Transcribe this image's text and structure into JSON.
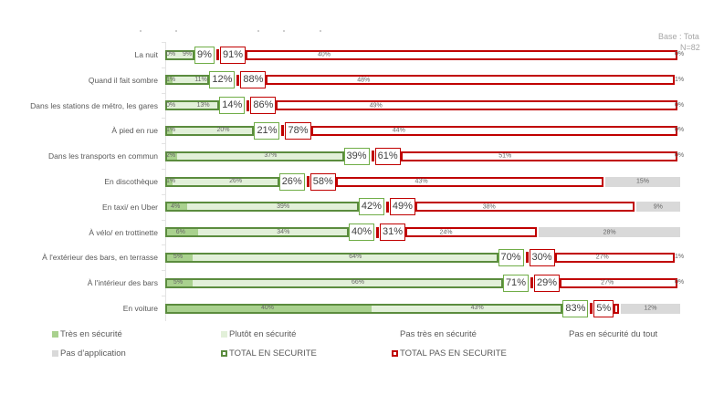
{
  "note": {
    "base": "Base : Tota",
    "n": "N=82"
  },
  "colors": {
    "tres": "#a9d18e",
    "plutot": "#e2f0d9",
    "green_border": "#5b8c3e",
    "total_green": "#70ad47",
    "red": "#c00000",
    "gray": "#d9d9d9"
  },
  "legend": [
    {
      "label": "Très en sécurité",
      "swatch": "dark-green-fill"
    },
    {
      "label": "Plutôt en sécurité",
      "swatch": "light-green-fill"
    },
    {
      "label": "Pas très en sécurité",
      "swatch": "none"
    },
    {
      "label": "Pas en sécurité du tout",
      "swatch": "none"
    },
    {
      "label": "Pas d’application",
      "swatch": "gray-fill"
    },
    {
      "label": "TOTAL EN SECURITE",
      "swatch": "green-outline"
    },
    {
      "label": "TOTAL PAS EN SECURITE",
      "swatch": "red-outline"
    }
  ],
  "chart_data": {
    "type": "bar",
    "orientation": "horizontal",
    "stacked": true,
    "title": "",
    "xlabel": "",
    "ylabel": "",
    "unit": "%",
    "grid": false,
    "legend_position": "bottom",
    "categories": [
      "La nuit",
      "Quand il fait sombre",
      "Dans les stations de métro, les gares",
      "À pied en rue",
      "Dans les transports en commun",
      "En discothèque",
      "En taxi/ en Uber",
      "À vélo/ en trottinette",
      "À l'extérieur des bars, en terrasse",
      "À l'intérieur des bars",
      "En voiture"
    ],
    "series": [
      {
        "key": "tres",
        "name": "Très en sécurité",
        "values": [
          0,
          1,
          0,
          1,
          2,
          1,
          4,
          6,
          5,
          5,
          40
        ]
      },
      {
        "key": "plutot",
        "name": "Plutôt en sécurité",
        "values": [
          9,
          11,
          13,
          20,
          37,
          26,
          39,
          34,
          64,
          66,
          43
        ]
      },
      {
        "key": "pas_tres",
        "name": "Pas très en sécurité",
        "values": [
          40,
          48,
          49,
          44,
          51,
          43,
          38,
          24,
          27,
          27,
          null
        ]
      },
      {
        "key": "pas_application",
        "name": "Pas d’application",
        "values": [
          0,
          1,
          0,
          0,
          0,
          15,
          9,
          28,
          1,
          0,
          12
        ]
      },
      {
        "key": "total_securite",
        "name": "TOTAL EN SECURITE",
        "values": [
          9,
          12,
          14,
          21,
          39,
          26,
          42,
          40,
          70,
          71,
          83
        ]
      },
      {
        "key": "total_pas_securite",
        "name": "TOTAL PAS EN SECURITE",
        "values": [
          91,
          88,
          86,
          78,
          61,
          58,
          49,
          31,
          30,
          29,
          5
        ]
      }
    ]
  }
}
